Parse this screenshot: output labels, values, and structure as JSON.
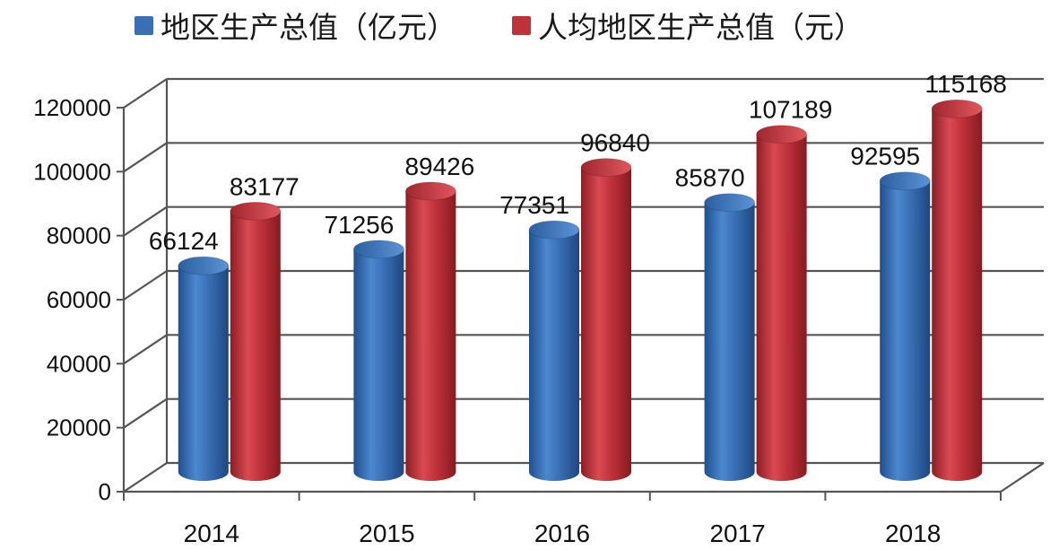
{
  "chart_data": {
    "type": "bar",
    "style": "3d-cylinder",
    "title": "",
    "xlabel": "",
    "ylabel": "",
    "categories": [
      "2014",
      "2015",
      "2016",
      "2017",
      "2018"
    ],
    "series": [
      {
        "name": "地区生产总值（亿元）",
        "color": "#3a6fb5",
        "values": [
          66124,
          71256,
          77351,
          85870,
          92595
        ],
        "labels": [
          "66124",
          "71256",
          "77351",
          "85870",
          "92595"
        ]
      },
      {
        "name": "人均地区生产总值（元）",
        "color": "#c0323a",
        "values": [
          83177,
          89426,
          96840,
          107189,
          115168
        ],
        "labels": [
          "83177",
          "89426",
          "96840",
          "107189",
          "115168"
        ]
      }
    ],
    "ylim": [
      0,
      120000
    ],
    "yticks": [
      "0",
      "20000",
      "40000",
      "60000",
      "80000",
      "100000",
      "120000"
    ],
    "grid": true,
    "legend_position": "top"
  }
}
